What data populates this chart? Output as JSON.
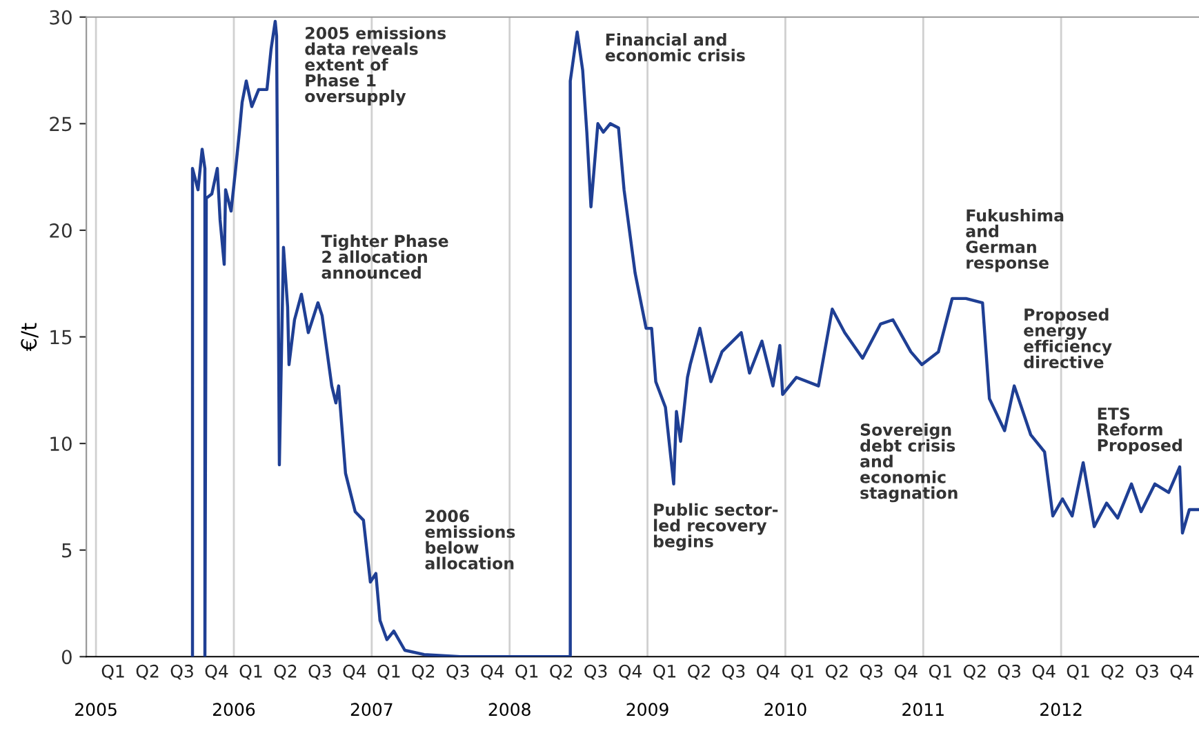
{
  "chart_data": {
    "type": "line",
    "ylabel": "€/t",
    "x": [
      2005.7,
      2005.7,
      2005.74,
      2005.77,
      2005.79,
      2005.79,
      2005.79,
      2005.8,
      2005.84,
      2005.88,
      2005.9,
      2005.93,
      2005.94,
      2005.98,
      2006.01,
      2006.04,
      2006.06,
      2006.09,
      2006.13,
      2006.18,
      2006.24,
      2006.27,
      2006.3,
      2006.31,
      2006.33,
      2006.36,
      2006.39,
      2006.4,
      2006.44,
      2006.49,
      2006.54,
      2006.61,
      2006.64,
      2006.71,
      2006.74,
      2006.76,
      2006.81,
      2006.88,
      2006.94,
      2006.99,
      2007.03,
      2007.06,
      2007.11,
      2007.16,
      2007.24,
      2007.38,
      2007.64,
      2007.98,
      2008.34,
      2008.44,
      2008.44,
      2008.49,
      2008.53,
      2008.56,
      2008.59,
      2008.64,
      2008.68,
      2008.73,
      2008.79,
      2008.83,
      2008.91,
      2008.99,
      2009.03,
      2009.06,
      2009.13,
      2009.19,
      2009.21,
      2009.24,
      2009.29,
      2009.31,
      2009.38,
      2009.46,
      2009.54,
      2009.68,
      2009.74,
      2009.83,
      2009.91,
      2009.96,
      2009.98,
      2010.08,
      2010.24,
      2010.34,
      2010.43,
      2010.56,
      2010.69,
      2010.78,
      2010.91,
      2010.99,
      2011.11,
      2011.21,
      2011.31,
      2011.43,
      2011.48,
      2011.59,
      2011.66,
      2011.78,
      2011.88,
      2011.94,
      2012.01,
      2012.08,
      2012.16,
      2012.24,
      2012.33,
      2012.41,
      2012.51,
      2012.58,
      2012.68,
      2012.78,
      2012.86,
      2012.88,
      2012.93,
      2013.0
    ],
    "values": [
      0,
      22.9,
      21.9,
      23.8,
      22.9,
      0,
      0,
      21.5,
      21.7,
      22.9,
      20.5,
      18.4,
      21.9,
      20.9,
      22.7,
      24.6,
      26.0,
      27.0,
      25.8,
      26.6,
      26.6,
      28.5,
      29.8,
      29.1,
      9.0,
      19.2,
      16.4,
      13.7,
      15.8,
      17.0,
      15.2,
      16.6,
      16.0,
      12.7,
      11.9,
      12.7,
      8.6,
      6.8,
      6.4,
      3.5,
      3.9,
      1.7,
      0.8,
      1.2,
      0.3,
      0.1,
      0,
      0,
      0,
      0,
      27.0,
      29.3,
      27.5,
      24.6,
      21.1,
      25.0,
      24.6,
      25.0,
      24.8,
      21.9,
      18.0,
      15.4,
      15.4,
      12.9,
      11.7,
      8.1,
      11.5,
      10.1,
      13.1,
      13.7,
      15.4,
      12.9,
      14.3,
      15.2,
      13.3,
      14.8,
      12.7,
      14.6,
      12.3,
      13.1,
      12.7,
      16.3,
      15.2,
      14.0,
      15.6,
      15.8,
      14.3,
      13.7,
      14.3,
      16.8,
      16.8,
      16.6,
      12.1,
      10.6,
      12.7,
      10.4,
      9.6,
      6.6,
      7.4,
      6.6,
      9.1,
      6.1,
      7.2,
      6.5,
      8.1,
      6.8,
      8.1,
      7.7,
      8.9,
      5.8,
      6.9,
      6.9
    ],
    "color": "#1f3f94",
    "line_style": "solid",
    "marker": "none",
    "xlim": [
      2004.93,
      2013.0
    ],
    "ylim": [
      0,
      30
    ],
    "yticks": [
      0,
      5,
      10,
      15,
      20,
      25,
      30
    ],
    "xticks": [
      2005,
      2006,
      2007,
      2008,
      2009,
      2010,
      2011,
      2012
    ],
    "grid": "x",
    "legend": false,
    "annotations": [
      "2005 emissions\ndata reveals\nextent of\nPhase 1\noversupply",
      "Tighter Phase\n2 allocation\nannounced",
      "2006\nemissions\nbelow\nallocation",
      "Financial and\neconomic crisis",
      "Public sector-\nled recovery\nbegins",
      "Sovereign\ndebt crisis\nand\neconomic\nstagnation",
      "Fukushima\nand\nGerman\nresponse",
      "Proposed\nenergy\nefficiency\ndirective",
      "ETS\nReform\nProposed",
      "Q1",
      "Q2",
      "Q3",
      "Q4",
      "Q1",
      "Q2",
      "Q3",
      "Q4",
      "Q1",
      "Q2",
      "Q3",
      "Q4",
      "Q1",
      "Q2",
      "Q3",
      "Q4",
      "Q1",
      "Q2",
      "Q3",
      "Q4",
      "Q1",
      "Q2",
      "Q3",
      "Q4",
      "Q1",
      "Q2",
      "Q3",
      "Q4",
      "Q1",
      "Q2",
      "Q3",
      "Q4"
    ]
  }
}
